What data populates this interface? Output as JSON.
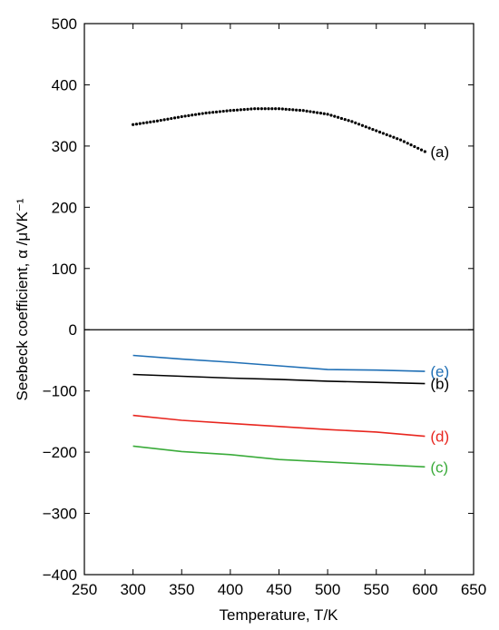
{
  "chart_data": {
    "type": "line",
    "xlabel": "Temperature, T/K",
    "ylabel": "Seebeck coefficient, α /μVK⁻¹",
    "xlim": [
      250,
      650
    ],
    "ylim": [
      -400,
      500
    ],
    "x_ticks": [
      "250",
      "300",
      "350",
      "400",
      "450",
      "500",
      "550",
      "600",
      "650"
    ],
    "y_ticks": [
      "500",
      "400",
      "300",
      "200",
      "100",
      "0",
      "−100",
      "−200",
      "−300",
      "−400"
    ],
    "zero_line": true,
    "series": [
      {
        "name": "(a)",
        "color": "#000000",
        "style": "dotted",
        "x": [
          300,
          325,
          350,
          375,
          400,
          425,
          450,
          475,
          500,
          525,
          550,
          575,
          600
        ],
        "y": [
          335,
          341,
          348,
          354,
          358,
          361,
          361,
          358,
          352,
          340,
          325,
          310,
          291
        ]
      },
      {
        "name": "(e)",
        "color": "#1f6fb5",
        "style": "solid",
        "x": [
          300,
          350,
          400,
          450,
          500,
          550,
          600
        ],
        "y": [
          -42,
          -48,
          -53,
          -59,
          -65,
          -66,
          -68
        ]
      },
      {
        "name": "(b)",
        "color": "#000000",
        "style": "solid",
        "x": [
          300,
          350,
          400,
          450,
          500,
          550,
          600
        ],
        "y": [
          -73,
          -76,
          -79,
          -81,
          -84,
          -86,
          -88
        ]
      },
      {
        "name": "(d)",
        "color": "#e8261f",
        "style": "solid",
        "x": [
          300,
          350,
          400,
          450,
          500,
          550,
          600
        ],
        "y": [
          -140,
          -148,
          -153,
          -158,
          -163,
          -167,
          -174
        ]
      },
      {
        "name": "(c)",
        "color": "#3aab3a",
        "style": "solid",
        "x": [
          300,
          350,
          400,
          450,
          500,
          550,
          600
        ],
        "y": [
          -190,
          -199,
          -204,
          -212,
          -216,
          -220,
          -224
        ]
      }
    ]
  }
}
